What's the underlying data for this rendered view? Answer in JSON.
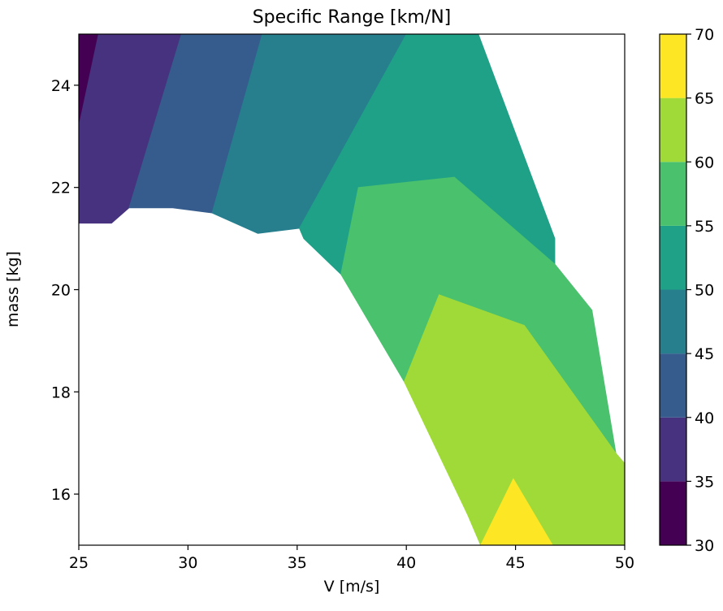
{
  "chart_data": {
    "type": "contourf",
    "title": "Specific Range [km/N]",
    "xlabel": "V [m/s]",
    "ylabel": "mass [kg]",
    "xlim": [
      25,
      50
    ],
    "ylim": [
      15,
      25
    ],
    "x_ticks": [
      "25",
      "30",
      "35",
      "40",
      "45",
      "50"
    ],
    "y_ticks": [
      "16",
      "18",
      "20",
      "22",
      "24"
    ],
    "colorbar": {
      "levels": [
        30,
        35,
        40,
        45,
        50,
        55,
        60,
        65,
        70
      ],
      "tick_labels": [
        "30",
        "35",
        "40",
        "45",
        "50",
        "55",
        "60",
        "65",
        "70"
      ],
      "colors": [
        "#440154",
        "#46327e",
        "#365c8d",
        "#277f8e",
        "#1fa187",
        "#4ac16d",
        "#a0da39",
        "#fde725"
      ]
    },
    "colormap": "viridis",
    "grid": false,
    "regions": [
      {
        "band": "30-35",
        "points": [
          [
            25,
            25
          ],
          [
            25.9,
            25
          ],
          [
            25,
            23.2
          ]
        ]
      },
      {
        "band": "35-40",
        "points": [
          [
            25,
            23.2
          ],
          [
            25.9,
            25
          ],
          [
            29.7,
            25
          ],
          [
            27.3,
            21.6
          ],
          [
            26.5,
            21.3
          ],
          [
            25,
            21.3
          ]
        ]
      },
      {
        "band": "40-45",
        "points": [
          [
            27.3,
            21.6
          ],
          [
            29.7,
            25
          ],
          [
            33.4,
            25
          ],
          [
            31.1,
            21.5
          ],
          [
            29.3,
            21.6
          ]
        ]
      },
      {
        "band": "45-50",
        "points": [
          [
            31.1,
            21.5
          ],
          [
            33.4,
            25
          ],
          [
            40.0,
            25
          ],
          [
            35.1,
            21.2
          ],
          [
            33.2,
            21.1
          ]
        ]
      },
      {
        "band": "50-55",
        "points": [
          [
            35.1,
            21.2
          ],
          [
            40.0,
            25
          ],
          [
            43.3,
            25
          ],
          [
            46.8,
            21.0
          ],
          [
            46.8,
            20.5
          ],
          [
            42.2,
            22.2
          ],
          [
            37.8,
            22.0
          ],
          [
            37.0,
            20.3
          ],
          [
            35.3,
            21.0
          ]
        ]
      },
      {
        "band": "55-60",
        "points": [
          [
            37.0,
            20.3
          ],
          [
            37.8,
            22.0
          ],
          [
            42.2,
            22.2
          ],
          [
            46.8,
            20.5
          ],
          [
            48.5,
            19.6
          ],
          [
            49.6,
            16.8
          ],
          [
            45.4,
            19.3
          ],
          [
            41.5,
            19.9
          ],
          [
            39.9,
            18.2
          ]
        ]
      },
      {
        "band": "60-65",
        "points": [
          [
            39.9,
            18.2
          ],
          [
            41.5,
            19.9
          ],
          [
            45.4,
            19.3
          ],
          [
            49.6,
            16.8
          ],
          [
            50,
            16.6
          ],
          [
            50,
            15
          ],
          [
            46.7,
            15
          ],
          [
            44.9,
            16.3
          ],
          [
            43.4,
            15
          ],
          [
            42.8,
            15.6
          ]
        ]
      },
      {
        "band": "65-70",
        "points": [
          [
            43.4,
            15
          ],
          [
            44.9,
            16.3
          ],
          [
            46.7,
            15
          ]
        ]
      }
    ]
  }
}
